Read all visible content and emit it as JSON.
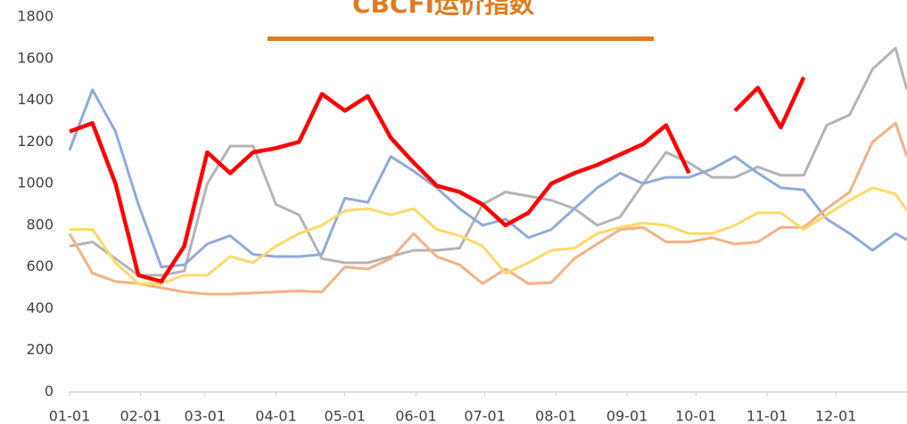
{
  "chart_data": {
    "type": "line",
    "title": "CBCFI运价指数",
    "x": [
      0,
      10,
      20,
      30,
      40,
      50,
      60,
      70,
      80,
      90,
      100,
      110,
      120,
      130,
      140,
      150,
      160,
      170,
      180,
      190,
      200,
      210,
      220,
      230,
      240,
      250,
      260,
      270,
      280,
      290,
      300,
      310,
      320,
      330,
      340,
      350,
      360,
      365
    ],
    "xlim": [
      0,
      365
    ],
    "xticks": [
      {
        "value": 0,
        "label": "01-01"
      },
      {
        "value": 31,
        "label": "02-01"
      },
      {
        "value": 59,
        "label": "03-01"
      },
      {
        "value": 90,
        "label": "04-01"
      },
      {
        "value": 120,
        "label": "05-01"
      },
      {
        "value": 151,
        "label": "06-01"
      },
      {
        "value": 181,
        "label": "07-01"
      },
      {
        "value": 212,
        "label": "08-01"
      },
      {
        "value": 243,
        "label": "09-01"
      },
      {
        "value": 273,
        "label": "10-01"
      },
      {
        "value": 304,
        "label": "11-01"
      },
      {
        "value": 334,
        "label": "12-01"
      }
    ],
    "ylim": [
      0,
      1800
    ],
    "yticks": [
      0,
      200,
      400,
      600,
      800,
      1000,
      1200,
      1400,
      1600,
      1800
    ],
    "grid": false,
    "series": [
      {
        "color": "#b4b4b4",
        "width": 3,
        "values": [
          700,
          720,
          640,
          560,
          560,
          580,
          1000,
          1180,
          1180,
          900,
          850,
          640,
          620,
          620,
          650,
          680,
          680,
          690,
          900,
          960,
          940,
          920,
          880,
          800,
          840,
          1000,
          1150,
          1100,
          1030,
          1030,
          1080,
          1040,
          1040,
          1280,
          1330,
          1550,
          1650,
          1450
        ]
      },
      {
        "color": "#8faadc",
        "width": 3,
        "values": [
          1160,
          1450,
          1250,
          900,
          600,
          610,
          710,
          750,
          660,
          650,
          650,
          660,
          930,
          910,
          1130,
          1060,
          980,
          880,
          800,
          830,
          740,
          780,
          880,
          980,
          1050,
          1000,
          1030,
          1030,
          1070,
          1130,
          1050,
          980,
          970,
          830,
          760,
          680,
          760,
          730
        ]
      },
      {
        "color": "#f4b183",
        "width": 3,
        "values": [
          760,
          570,
          530,
          520,
          500,
          480,
          470,
          470,
          475,
          480,
          485,
          480,
          600,
          590,
          640,
          760,
          650,
          610,
          520,
          590,
          520,
          525,
          640,
          710,
          780,
          790,
          720,
          720,
          740,
          710,
          720,
          790,
          790,
          880,
          960,
          1200,
          1290,
          1130
        ]
      },
      {
        "color": "#ffd966",
        "width": 3,
        "values": [
          780,
          780,
          620,
          520,
          520,
          560,
          560,
          650,
          620,
          700,
          760,
          800,
          870,
          880,
          850,
          880,
          780,
          750,
          700,
          570,
          620,
          680,
          690,
          760,
          790,
          810,
          800,
          760,
          760,
          800,
          860,
          860,
          780,
          850,
          920,
          980,
          950,
          870
        ]
      },
      {
        "color": "#ff0000",
        "width": 4.5,
        "values": [
          1250,
          1290,
          1000,
          560,
          530,
          700,
          1150,
          1050,
          1150,
          1170,
          1200,
          1430,
          1350,
          1420,
          1220,
          1100,
          990,
          960,
          900,
          800,
          860,
          1000,
          1050,
          1090,
          1140,
          1190,
          1280,
          1050,
          null,
          1350,
          1460,
          1270,
          1510,
          null,
          null,
          null,
          null,
          null
        ]
      }
    ]
  }
}
